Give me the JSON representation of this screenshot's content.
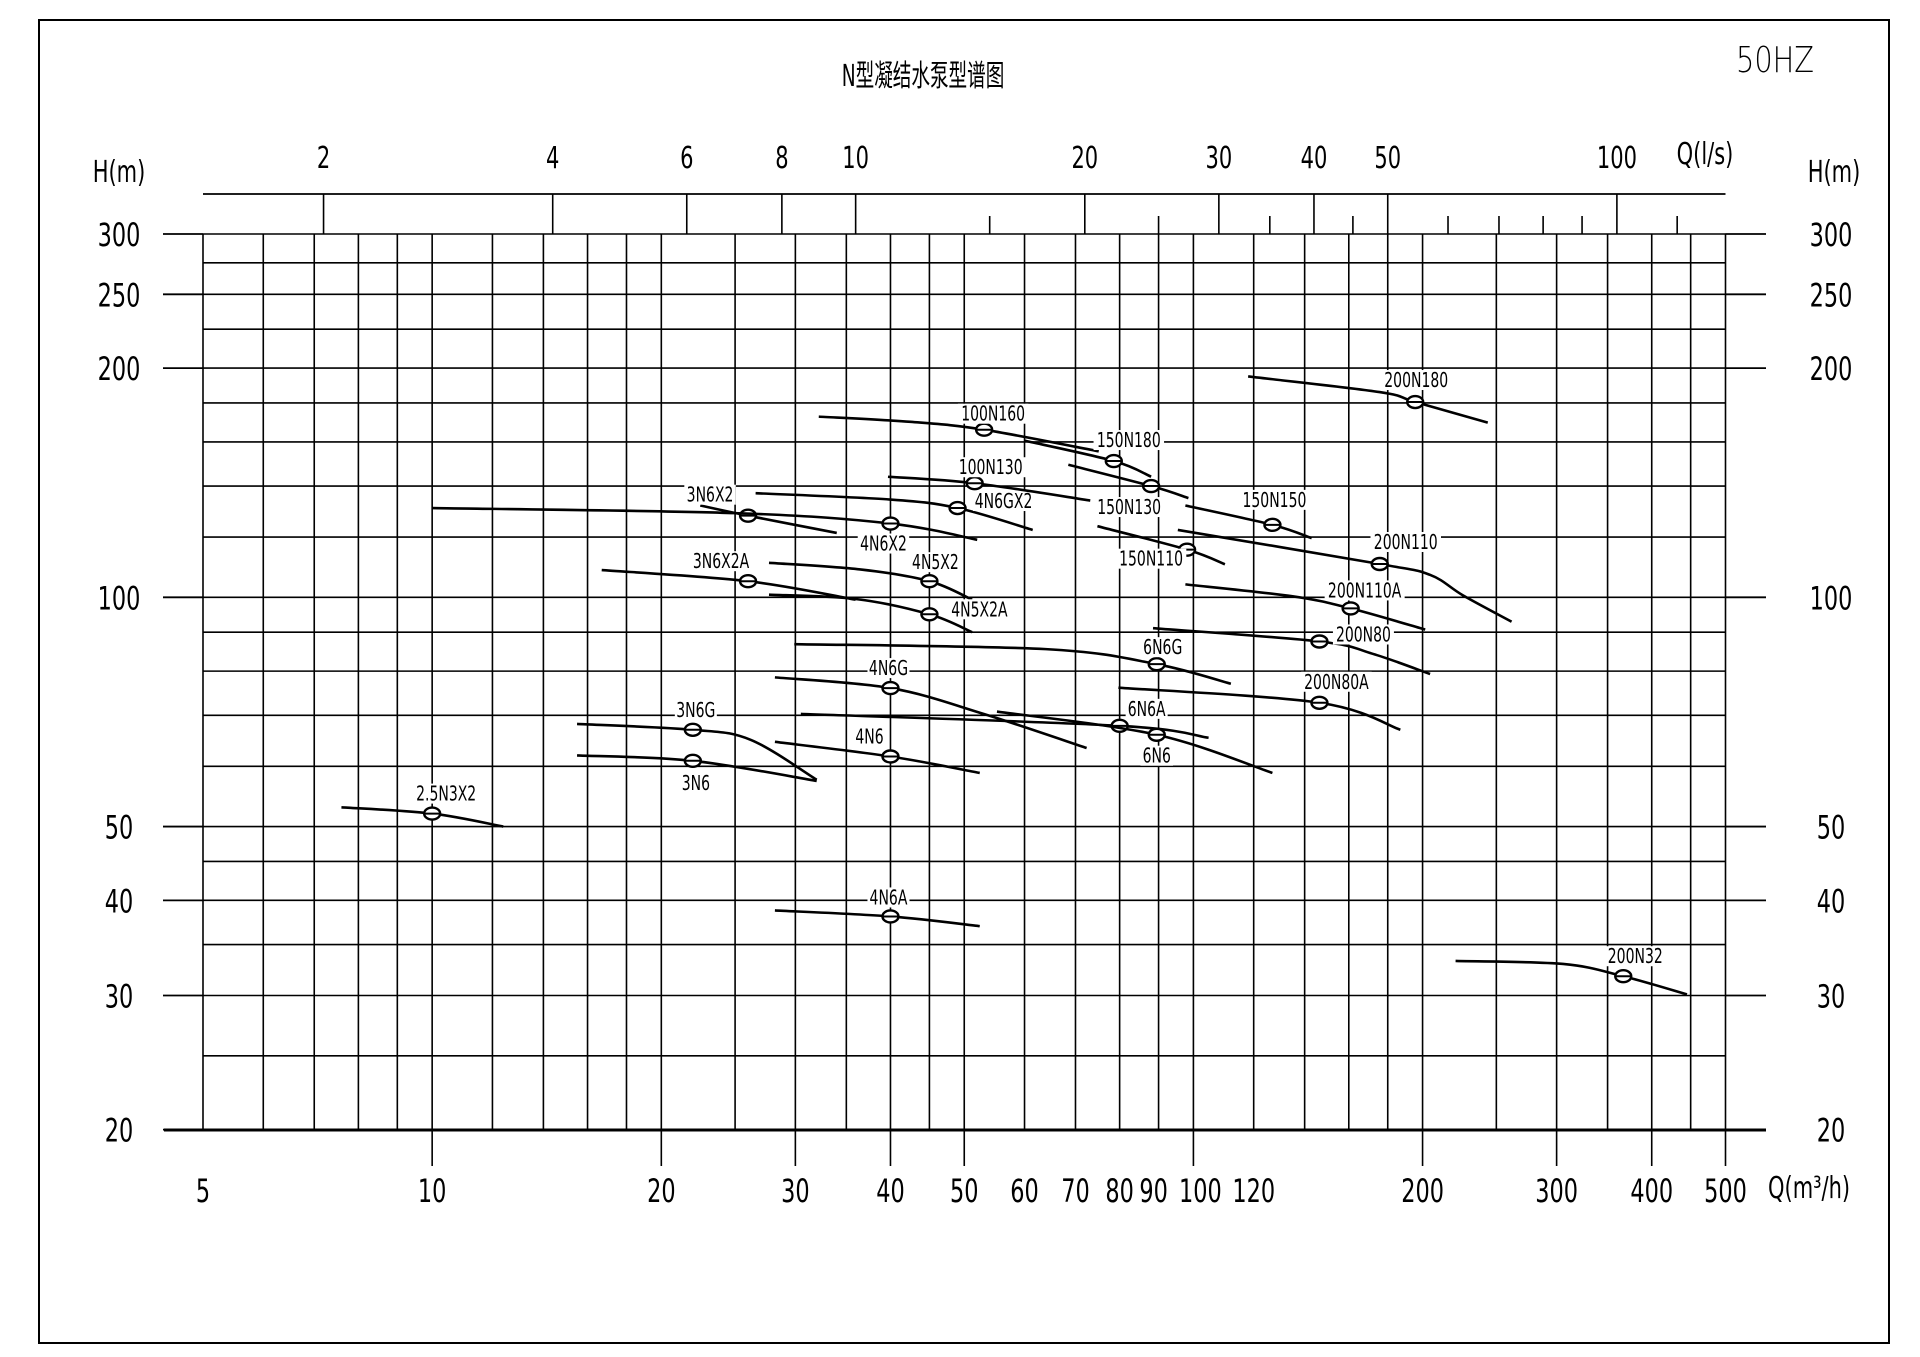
{
  "title": "N型凝结水泵型谱图",
  "frequency": "50HZ",
  "chart_data": {
    "type": "line",
    "title": "N型凝结水泵型谱图",
    "xlabel": "Q(m³/h)",
    "x2label": "Q(l/s)",
    "ylabel": "H(m)",
    "x_scale": "log",
    "y_scale": "log",
    "xlim": [
      5,
      500
    ],
    "ylim": [
      20,
      300
    ],
    "grid": true,
    "x_ticks": [
      5,
      10,
      20,
      30,
      40,
      50,
      60,
      70,
      80,
      90,
      100,
      120,
      200,
      300,
      400,
      500
    ],
    "x2_ticks": [
      2,
      4,
      6,
      8,
      10,
      20,
      30,
      40,
      50,
      100
    ],
    "x2_minor_ticks": [
      15,
      25,
      35,
      45,
      60,
      70,
      80,
      90,
      120
    ],
    "y_ticks": [
      20,
      30,
      40,
      50,
      100,
      200,
      250,
      300
    ],
    "x_grid": [
      5,
      6,
      7,
      8,
      9,
      10,
      12,
      14,
      16,
      18,
      20,
      25,
      30,
      35,
      40,
      45,
      50,
      60,
      70,
      80,
      90,
      100,
      120,
      140,
      160,
      180,
      200,
      250,
      300,
      350,
      400,
      450,
      500
    ],
    "y_grid": [
      20,
      25,
      30,
      35,
      40,
      45,
      50,
      60,
      70,
      80,
      90,
      100,
      120,
      140,
      160,
      180,
      200,
      225,
      250,
      275,
      300
    ],
    "series": [
      {
        "name": "2.5N3X2",
        "points": [
          [
            7.6,
            53
          ],
          [
            10,
            52
          ],
          [
            12.4,
            50
          ]
        ],
        "duty_point": [
          10,
          52
        ]
      },
      {
        "name": "3N6G",
        "points": [
          [
            15.5,
            68.2
          ],
          [
            22,
            67
          ],
          [
            26.2,
            65
          ],
          [
            32,
            57.6
          ]
        ],
        "duty_point": [
          22,
          67
        ]
      },
      {
        "name": "3N6",
        "points": [
          [
            15.5,
            62
          ],
          [
            22,
            61
          ],
          [
            32,
            57.4
          ]
        ],
        "duty_point": [
          22,
          61
        ]
      },
      {
        "name": "3N6X2A",
        "points": [
          [
            16.7,
            108.6
          ],
          [
            26,
            105
          ],
          [
            36,
            99.3
          ]
        ],
        "duty_point": [
          26,
          105
        ]
      },
      {
        "name": "3N6X2",
        "points": [
          [
            22.5,
            132
          ],
          [
            26,
            128
          ],
          [
            34,
            121.5
          ]
        ],
        "duty_point": [
          26,
          128
        ]
      },
      {
        "name": "4N6X2",
        "points": [
          [
            10,
            131
          ],
          [
            25,
            129
          ],
          [
            40,
            125
          ],
          [
            52,
            119
          ]
        ],
        "duty_point": [
          40,
          125
        ]
      },
      {
        "name": "4N6GX2",
        "points": [
          [
            26.6,
            137
          ],
          [
            40,
            134.4
          ],
          [
            49,
            131
          ],
          [
            61.5,
            122.6
          ]
        ],
        "duty_point": [
          49,
          131
        ]
      },
      {
        "name": "4N5X2",
        "points": [
          [
            27.7,
            111
          ],
          [
            36.5,
            108.8
          ],
          [
            45,
            105
          ],
          [
            51.2,
            99.3
          ]
        ],
        "duty_point": [
          45,
          105
        ]
      },
      {
        "name": "4N5X2A",
        "points": [
          [
            27.7,
            100.8
          ],
          [
            36,
            99.5
          ],
          [
            45,
            95
          ],
          [
            51.2,
            90
          ]
        ],
        "duty_point": [
          45,
          95
        ]
      },
      {
        "name": "4N6G",
        "points": [
          [
            28.2,
            78.5
          ],
          [
            40,
            76
          ],
          [
            53,
            70.3
          ],
          [
            72.4,
            63.4
          ]
        ],
        "duty_point": [
          40,
          76
        ]
      },
      {
        "name": "4N6",
        "points": [
          [
            28.2,
            64.6
          ],
          [
            40,
            61.8
          ],
          [
            52.4,
            58.8
          ]
        ],
        "duty_point": [
          40,
          61.8
        ]
      },
      {
        "name": "4N6A",
        "points": [
          [
            28.2,
            38.8
          ],
          [
            40,
            38.1
          ],
          [
            52.4,
            37
          ]
        ],
        "duty_point": [
          40,
          38.1
        ]
      },
      {
        "name": "6N6G",
        "points": [
          [
            29.9,
            86.8
          ],
          [
            64,
            85.5
          ],
          [
            89.5,
            81.7
          ],
          [
            112,
            77
          ]
        ],
        "duty_point": [
          89.5,
          81.7
        ]
      },
      {
        "name": "6N6A",
        "points": [
          [
            30.5,
            70.3
          ],
          [
            80,
            67.8
          ],
          [
            104.7,
            65.4
          ]
        ],
        "duty_point": [
          80,
          67.8
        ]
      },
      {
        "name": "6N6",
        "points": [
          [
            55.2,
            70.8
          ],
          [
            89.5,
            66
          ],
          [
            127,
            58.8
          ]
        ],
        "duty_point": [
          89.5,
          66
        ]
      },
      {
        "name": "100N160",
        "points": [
          [
            32.2,
            172.7
          ],
          [
            42.5,
            170
          ],
          [
            53.1,
            166
          ],
          [
            75.1,
            155.5
          ]
        ],
        "duty_point": [
          53.1,
          166
        ]
      },
      {
        "name": "100N130",
        "points": [
          [
            39.7,
            144
          ],
          [
            51.6,
            141.2
          ],
          [
            73.2,
            134
          ]
        ],
        "duty_point": [
          51.6,
          141.2
        ]
      },
      {
        "name": "150N180",
        "points": [
          [
            60,
            160.6
          ],
          [
            78.6,
            151
          ],
          [
            88,
            144
          ]
        ],
        "duty_point": [
          78.6,
          151
        ]
      },
      {
        "name": "150N130",
        "points": [
          [
            68.5,
            149.3
          ],
          [
            88,
            140
          ],
          [
            98.5,
            135
          ]
        ],
        "duty_point": [
          88,
          140
        ]
      },
      {
        "name": "150N110",
        "points": [
          [
            74.8,
            124
          ],
          [
            98.1,
            115.5
          ],
          [
            110,
            110.5
          ]
        ],
        "duty_point": [
          98.1,
          115.5
        ]
      },
      {
        "name": "150N150",
        "points": [
          [
            97.6,
            132
          ],
          [
            127,
            124.5
          ],
          [
            143,
            119.6
          ]
        ],
        "duty_point": [
          127,
          124.5
        ]
      },
      {
        "name": "200N180",
        "points": [
          [
            118,
            195
          ],
          [
            175.6,
            186
          ],
          [
            195.6,
            180.5
          ],
          [
            243.6,
            169.6
          ]
        ],
        "duty_point": [
          195.6,
          180.5
        ]
      },
      {
        "name": "200N110",
        "points": [
          [
            95.4,
            122.6
          ],
          [
            175.7,
            110.6
          ],
          [
            204.7,
            107
          ],
          [
            226,
            100.6
          ],
          [
            261.8,
            92.9
          ]
        ],
        "duty_point": [
          175.7,
          110.6
        ]
      },
      {
        "name": "200N110A",
        "points": [
          [
            97.6,
            104
          ],
          [
            135,
            100.3
          ],
          [
            160.9,
            96.7
          ],
          [
            201.6,
            90.7
          ]
        ],
        "duty_point": [
          160.9,
          96.7
        ]
      },
      {
        "name": "200N80",
        "points": [
          [
            88.5,
            91.1
          ],
          [
            146.4,
            87.5
          ],
          [
            172,
            84.3
          ],
          [
            204.6,
            79.3
          ]
        ],
        "duty_point": [
          146.4,
          87.5
        ]
      },
      {
        "name": "200N80A",
        "points": [
          [
            79.7,
            76.1
          ],
          [
            146.4,
            72.7
          ],
          [
            187,
            67
          ]
        ],
        "duty_point": [
          146.4,
          72.7
        ]
      },
      {
        "name": "200N32",
        "points": [
          [
            221,
            33.3
          ],
          [
            306,
            33
          ],
          [
            367,
            31.8
          ],
          [
            445,
            30.1
          ]
        ],
        "duty_point": [
          367,
          31.8
        ]
      }
    ]
  }
}
